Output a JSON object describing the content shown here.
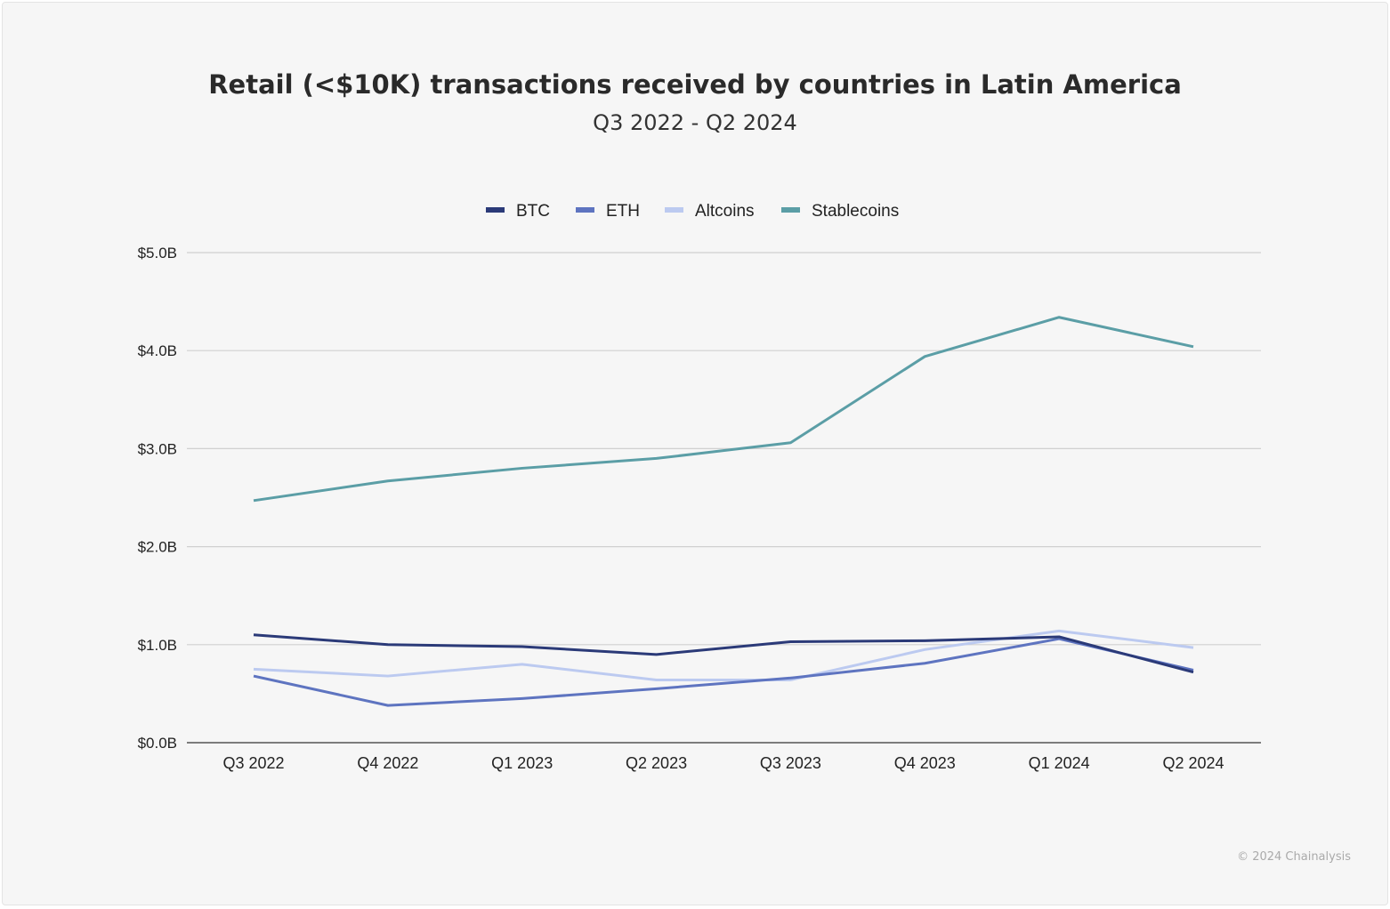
{
  "chart_data": {
    "type": "line",
    "title": "Retail (<$10K) transactions received by countries in Latin America",
    "subtitle": "Q3 2022 - Q2 2024",
    "xlabel": "",
    "ylabel": "",
    "categories": [
      "Q3 2022",
      "Q4 2022",
      "Q1 2023",
      "Q2 2023",
      "Q3 2023",
      "Q4 2023",
      "Q1 2024",
      "Q2 2024"
    ],
    "ylim": [
      0,
      5
    ],
    "yticks": [
      0,
      1,
      2,
      3,
      4,
      5
    ],
    "ytick_labels": [
      "$0.0B",
      "$1.0B",
      "$2.0B",
      "$3.0B",
      "$4.0B",
      "$5.0B"
    ],
    "grid": true,
    "legend_position": "top",
    "series": [
      {
        "name": "BTC",
        "color": "#2b3a78",
        "values": [
          1.1,
          1.0,
          0.98,
          0.9,
          1.03,
          1.04,
          1.08,
          0.72
        ]
      },
      {
        "name": "ETH",
        "color": "#5e74c0",
        "values": [
          0.68,
          0.38,
          0.45,
          0.55,
          0.66,
          0.81,
          1.06,
          0.74
        ]
      },
      {
        "name": "Altcoins",
        "color": "#bccaf0",
        "values": [
          0.75,
          0.68,
          0.8,
          0.64,
          0.64,
          0.95,
          1.14,
          0.97
        ]
      },
      {
        "name": "Stablecoins",
        "color": "#5b9ea6",
        "values": [
          2.47,
          2.67,
          2.8,
          2.9,
          3.06,
          3.94,
          4.34,
          4.04
        ]
      }
    ]
  },
  "credit": "© 2024 Chainalysis"
}
